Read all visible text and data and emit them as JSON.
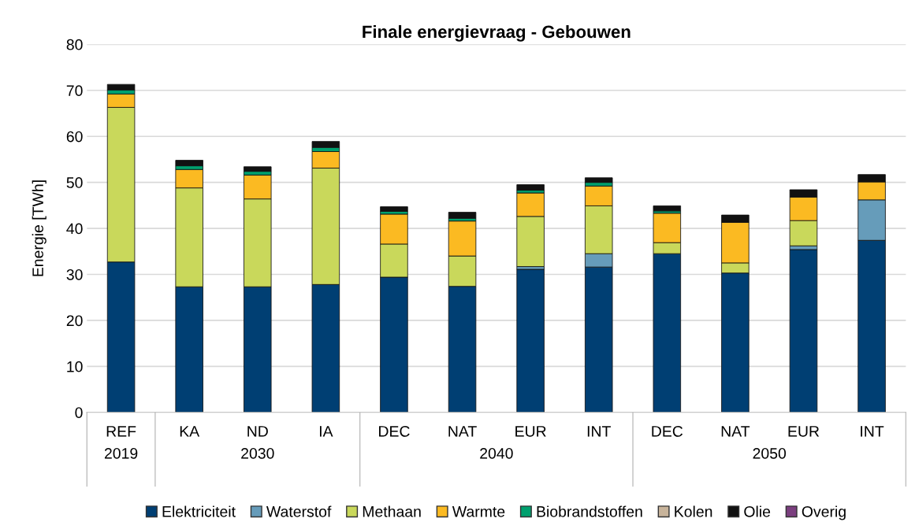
{
  "chart_data": {
    "type": "bar",
    "title": "Finale energievraag - Gebouwen",
    "ylabel": "Energie [TWh]",
    "categories": [
      "REF",
      "KA",
      "ND",
      "IA",
      "DEC",
      "NAT",
      "EUR",
      "INT",
      "DEC",
      "NAT",
      "EUR",
      "INT"
    ],
    "annotations": [
      "2019",
      "2030",
      "2040",
      "2050"
    ],
    "stacked": true,
    "ylim": [
      0,
      80
    ],
    "yticks": [
      0,
      10,
      20,
      30,
      40,
      50,
      60,
      70,
      80
    ],
    "grid": "y",
    "legend": "bottom",
    "series": [
      {
        "name": "Elektriciteit",
        "color": "#003f73",
        "values": [
          32.7,
          27.3,
          27.3,
          27.8,
          29.4,
          27.4,
          31.1,
          31.6,
          34.5,
          30.3,
          35.4,
          37.4
        ]
      },
      {
        "name": "Waterstof",
        "color": "#669cba",
        "values": [
          0,
          0,
          0,
          0,
          0,
          0,
          0.6,
          2.9,
          0,
          0,
          0.8,
          8.8
        ]
      },
      {
        "name": "Methaan",
        "color": "#c9d85b",
        "values": [
          33.6,
          21.5,
          19.1,
          25.3,
          7.2,
          6.6,
          10.9,
          10.4,
          2.4,
          2.2,
          5.5,
          0
        ]
      },
      {
        "name": "Warmte",
        "color": "#fbba22",
        "values": [
          2.9,
          4.0,
          5.2,
          3.6,
          6.5,
          7.6,
          5.1,
          4.3,
          6.4,
          8.8,
          5.1,
          3.9
        ]
      },
      {
        "name": "Biobrandstoffen",
        "color": "#00a06e",
        "values": [
          0.9,
          0.8,
          0.8,
          0.9,
          0.6,
          0.6,
          0.6,
          0.8,
          0.5,
          0,
          0,
          0
        ]
      },
      {
        "name": "Kolen",
        "color": "#c8b49b",
        "values": [
          0,
          0,
          0,
          0,
          0,
          0,
          0,
          0,
          0,
          0,
          0,
          0
        ]
      },
      {
        "name": "Olie",
        "color": "#111111",
        "values": [
          1.2,
          1.2,
          1.0,
          1.3,
          1.0,
          1.3,
          1.2,
          1.0,
          1.1,
          1.6,
          1.6,
          1.6
        ]
      },
      {
        "name": "Overig",
        "color": "#7b3f7f",
        "values": [
          0,
          0,
          0,
          0,
          0,
          0,
          0,
          0,
          0,
          0,
          0,
          0
        ]
      }
    ]
  }
}
